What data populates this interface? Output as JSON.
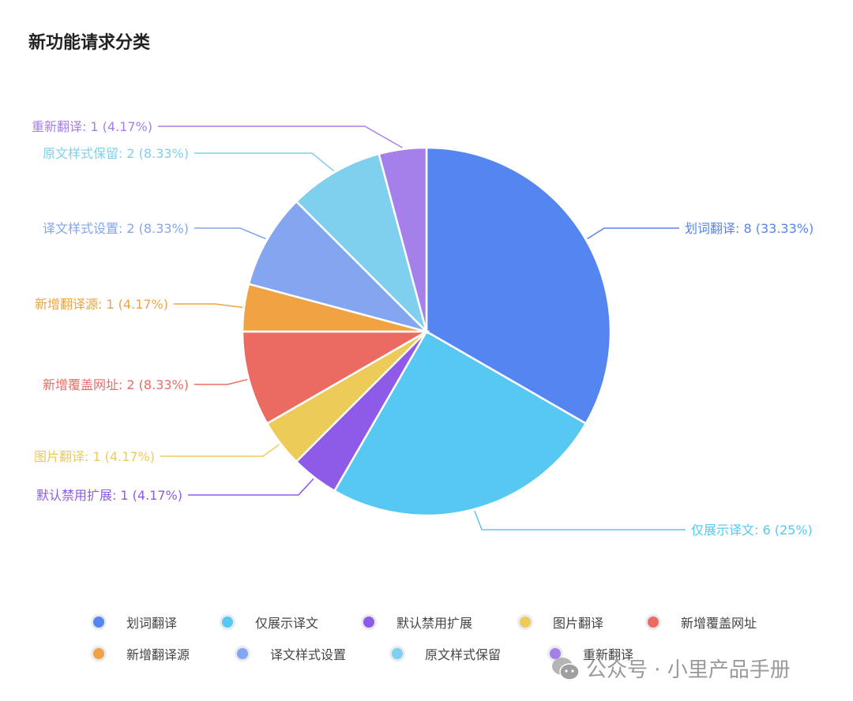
{
  "chart_data": {
    "type": "pie",
    "title": "新功能请求分类",
    "categories": [
      "划词翻译",
      "仅展示译文",
      "默认禁用扩展",
      "图片翻译",
      "新增覆盖网址",
      "新增翻译源",
      "译文样式设置",
      "原文样式保留",
      "重新翻译"
    ],
    "values": [
      8,
      6,
      1,
      1,
      2,
      1,
      2,
      2,
      1
    ],
    "percents": [
      "33.33%",
      "25%",
      "4.17%",
      "4.17%",
      "8.33%",
      "4.17%",
      "8.33%",
      "8.33%",
      "4.17%"
    ],
    "colors": [
      "#5585f1",
      "#56c8f2",
      "#8e5ae8",
      "#edcb58",
      "#eb6b63",
      "#f1a344",
      "#84a5ef",
      "#7fd0ef",
      "#a580ea"
    ],
    "legend_position": "bottom"
  },
  "watermark": "公众号 · 小里产品手册"
}
